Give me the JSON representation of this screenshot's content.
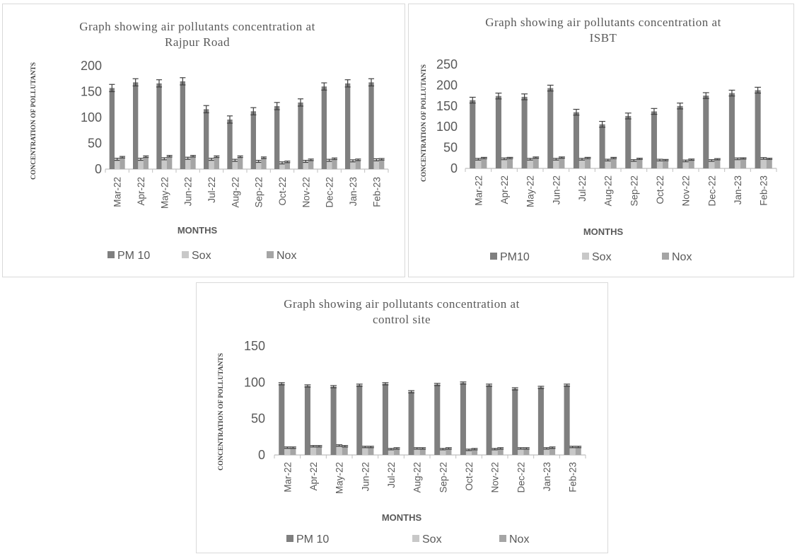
{
  "chart_data": [
    {
      "type": "bar",
      "title": "Graph showing air pollutants concentration at Rajpur Road",
      "title_lines": [
        "Graph showing air pollutants concentration at",
        "Rajpur Road"
      ],
      "ylabel": "CONCENTRATION OF POLLUTANTS",
      "xlabel": "MONTHS",
      "ylim": [
        0,
        200
      ],
      "yticks": [
        0,
        50,
        100,
        150,
        200
      ],
      "categories": [
        "Mar-22",
        "Apr-22",
        "May-22",
        "Jun-22",
        "Jul-22",
        "Aug-22",
        "Sep-22",
        "Oct-22",
        "Nov-22",
        "Dec-22",
        "Jan-23",
        "Feb-23"
      ],
      "series": [
        {
          "name": "PM 10",
          "color": "#7f7f7f",
          "values": [
            157,
            168,
            166,
            170,
            116,
            96,
            112,
            122,
            129,
            160,
            166,
            168
          ],
          "error": [
            7,
            7,
            7,
            7,
            7,
            7,
            7,
            7,
            7,
            7,
            7,
            7
          ]
        },
        {
          "name": "Sox",
          "color": "#c8c8c8",
          "values": [
            19,
            19,
            20,
            21,
            19,
            17,
            15,
            12,
            15,
            17,
            16,
            18
          ],
          "error": [
            2,
            2,
            2,
            2,
            2,
            2,
            2,
            2,
            2,
            2,
            2,
            2
          ]
        },
        {
          "name": "Nox",
          "color": "#a5a5a5",
          "values": [
            23,
            24,
            25,
            25,
            24,
            24,
            22,
            14,
            18,
            20,
            18,
            19
          ],
          "error": [
            1.5,
            1.5,
            1.5,
            1.5,
            1.5,
            1.5,
            1.5,
            1.5,
            1.5,
            1.5,
            1.5,
            1.5
          ]
        }
      ],
      "grid": false,
      "legend": "bottom"
    },
    {
      "type": "bar",
      "title": "Graph showing air pollutants concentration at ISBT",
      "title_lines": [
        "Graph showing air pollutants concentration at",
        "ISBT"
      ],
      "ylabel": "CONCENTRATION OF POLLUTANTS",
      "xlabel": "MONTHS",
      "ylim": [
        0,
        250
      ],
      "yticks": [
        0,
        50,
        100,
        150,
        200,
        250
      ],
      "categories": [
        "Mar-22",
        "Apr-22",
        "May-22",
        "Jun-22",
        "Jul-22",
        "Aug-22",
        "Sep-22",
        "Oct-22",
        "Nov-22",
        "Dec-22",
        "Jan-23",
        "Feb-23"
      ],
      "series": [
        {
          "name": "PM10",
          "color": "#7f7f7f",
          "values": [
            164,
            174,
            172,
            193,
            135,
            106,
            126,
            137,
            150,
            175,
            181,
            188
          ],
          "error": [
            7,
            7,
            7,
            7,
            7,
            7,
            7,
            7,
            7,
            7,
            7,
            7
          ]
        },
        {
          "name": "Sox",
          "color": "#c8c8c8",
          "values": [
            22,
            23,
            22,
            22,
            22,
            20,
            19,
            20,
            18,
            19,
            23,
            24
          ],
          "error": [
            2,
            2,
            2,
            2,
            2,
            2,
            2,
            2,
            2,
            2,
            2,
            2
          ]
        },
        {
          "name": "Nox",
          "color": "#a5a5a5",
          "values": [
            25,
            25,
            26,
            26,
            25,
            25,
            23,
            20,
            21,
            22,
            24,
            23
          ],
          "error": [
            1.5,
            1.5,
            1.5,
            1.5,
            1.5,
            1.5,
            1.5,
            1.5,
            1.5,
            1.5,
            1.5,
            1.5
          ]
        }
      ],
      "grid": false,
      "legend": "bottom"
    },
    {
      "type": "bar",
      "title": "Graph showing air pollutants concentration at control site",
      "title_lines": [
        "Graph showing air pollutants concentration at",
        "control site"
      ],
      "ylabel": "CONCENTRATION OF POLLUTANTS",
      "xlabel": "MONTHS",
      "ylim": [
        0,
        150
      ],
      "yticks": [
        0,
        50,
        100,
        150
      ],
      "categories": [
        "Mar-22",
        "Apr-22",
        "May-22",
        "Jun-22",
        "Jul-22",
        "Aug-22",
        "Sep-22",
        "Oct-22",
        "Nov-22",
        "Dec-22",
        "Jan-23",
        "Feb-23"
      ],
      "series": [
        {
          "name": "PM 10",
          "color": "#7f7f7f",
          "values": [
            98,
            95,
            94,
            96,
            98,
            87,
            97,
            99,
            96,
            91,
            93,
            96
          ],
          "error": [
            1.5,
            1.5,
            1.5,
            1.5,
            1.5,
            1.5,
            1.5,
            1.5,
            1.5,
            1.5,
            1.5,
            1.5
          ]
        },
        {
          "name": "Sox",
          "color": "#c8c8c8",
          "values": [
            10,
            12,
            13,
            11,
            8,
            9,
            8,
            7,
            8,
            9,
            9,
            11
          ],
          "error": [
            1,
            1,
            1,
            1,
            1,
            1,
            1,
            1,
            1,
            1,
            1,
            1
          ]
        },
        {
          "name": "Nox",
          "color": "#a5a5a5",
          "values": [
            10,
            12,
            12,
            11,
            9,
            9,
            9,
            8,
            9,
            9,
            10,
            11
          ],
          "error": [
            1,
            1,
            1,
            1,
            1,
            1,
            1,
            1,
            1,
            1,
            1,
            1
          ]
        }
      ],
      "grid": false,
      "legend": "bottom"
    }
  ]
}
